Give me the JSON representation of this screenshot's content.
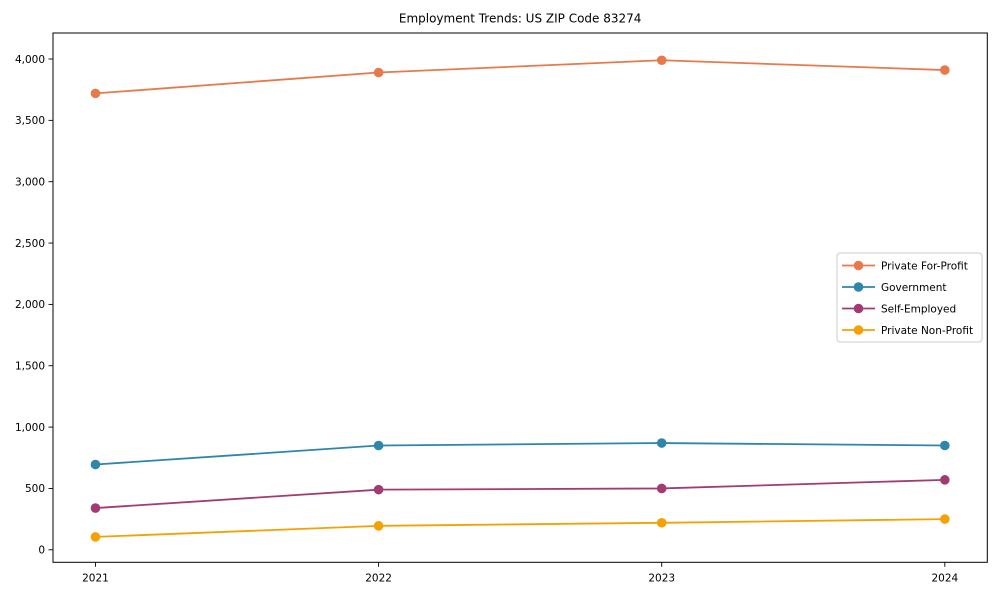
{
  "figure": {
    "title": "Employment Trends: US ZIP Code 83274"
  },
  "chart_data": {
    "type": "line",
    "title": "Employment Trends: US ZIP Code 83274",
    "categories": [
      "2021",
      "2022",
      "2023",
      "2024"
    ],
    "x": [
      2021,
      2022,
      2023,
      2024
    ],
    "series": [
      {
        "name": "Private For-Profit",
        "color": "#E8794B",
        "values": [
          3720,
          3890,
          3990,
          3910
        ]
      },
      {
        "name": "Government",
        "color": "#2E86AB",
        "values": [
          695,
          850,
          870,
          850
        ]
      },
      {
        "name": "Self-Employed",
        "color": "#A23B72",
        "values": [
          340,
          490,
          500,
          570
        ]
      },
      {
        "name": "Private Non-Profit",
        "color": "#F5A105",
        "values": [
          105,
          195,
          220,
          250
        ]
      }
    ],
    "xlabel": "",
    "ylabel": "",
    "xlim": [
      2020.85,
      2024.15
    ],
    "ylim": [
      -102,
      4212
    ],
    "x_tick_labels": [
      "2021",
      "2022",
      "2023",
      "2024"
    ],
    "y_ticks": [
      0,
      500,
      1000,
      1500,
      2000,
      2500,
      3000,
      3500,
      4000
    ],
    "y_tick_labels": [
      "0",
      "500",
      "1,000",
      "1,500",
      "2,000",
      "2,500",
      "3,000",
      "3,500",
      "4,000"
    ],
    "grid": false,
    "legend_position": "center right",
    "marker": "circle",
    "style": {
      "axis_color": "#000000",
      "background": "#ffffff",
      "legend_border_color": "#cccccc",
      "line_width": 1.8,
      "marker_radius": 4.8
    }
  }
}
